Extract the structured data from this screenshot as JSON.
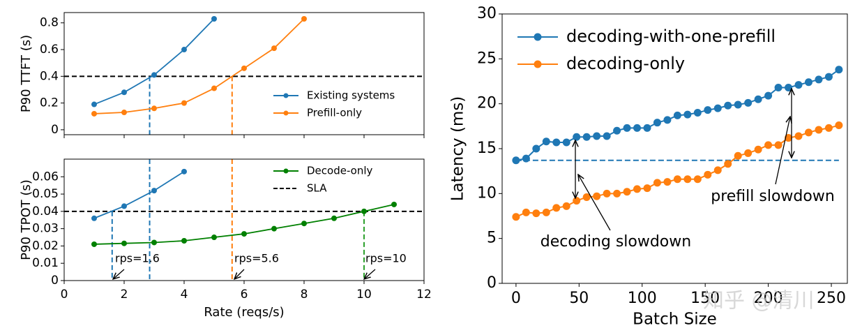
{
  "chart_data": [
    {
      "type": "line",
      "ylabel": "P90 TTFT (s)",
      "xlim": [
        0,
        12
      ],
      "ylim": [
        -0.037,
        0.877
      ],
      "yticks": [
        0,
        0.2,
        0.4,
        0.6,
        0.8
      ],
      "sla": 0.4,
      "legend": "center right",
      "vlines": [
        {
          "x": 2.85,
          "y": 0.4,
          "color": "#1f77b4"
        },
        {
          "x": 5.6,
          "y": 0.4,
          "color": "#ff7f0e"
        }
      ],
      "series": [
        {
          "name": "Existing systems",
          "color": "#1f77b4",
          "x": [
            1,
            2,
            3,
            4,
            5
          ],
          "values": [
            0.19,
            0.28,
            0.41,
            0.6,
            0.83
          ]
        },
        {
          "name": "Prefill-only",
          "color": "#ff7f0e",
          "x": [
            1,
            2,
            3,
            4,
            5,
            6,
            7,
            8
          ],
          "values": [
            0.12,
            0.13,
            0.16,
            0.2,
            0.31,
            0.46,
            0.61,
            0.83
          ]
        }
      ]
    },
    {
      "type": "line",
      "ylabel": "P90 TPOT (s)",
      "xlabel": "Rate (reqs/s)",
      "xlim": [
        0,
        12
      ],
      "xticks": [
        0,
        2,
        4,
        6,
        8,
        10,
        12
      ],
      "ylim": [
        0,
        0.0702
      ],
      "yticks": [
        0,
        0.01,
        0.02,
        0.03,
        0.04,
        0.05,
        0.06
      ],
      "sla": 0.04,
      "sla_label": "SLA",
      "legend": "upper right",
      "vlines": [
        {
          "x": 1.6,
          "y": 0.04,
          "color": "#1f77b4"
        },
        {
          "x": 2.85,
          "y": 0.0702,
          "color": "#1f77b4"
        },
        {
          "x": 5.6,
          "y": 0.0702,
          "color": "#ff7f0e"
        },
        {
          "x": 10,
          "y": 0.04,
          "color": "#2ca02c"
        }
      ],
      "annotations": [
        "rps=1.6",
        "rps=5.6",
        "rps=10"
      ],
      "series": [
        {
          "color": "#1f77b4",
          "x": [
            1,
            2,
            3,
            4
          ],
          "values": [
            0.036,
            0.043,
            0.052,
            0.063
          ]
        },
        {
          "name": "Decode-only",
          "color": "#008000",
          "x": [
            1,
            2,
            3,
            4,
            5,
            6,
            7,
            8,
            9,
            10,
            11
          ],
          "values": [
            0.021,
            0.0215,
            0.022,
            0.023,
            0.025,
            0.027,
            0.03,
            0.033,
            0.036,
            0.04,
            0.044
          ]
        }
      ]
    },
    {
      "type": "line",
      "ylabel": "Latency (ms)",
      "xlabel": "Batch Size",
      "xlim": [
        -11,
        262.7
      ],
      "xticks": [
        0,
        50,
        100,
        150,
        200,
        250
      ],
      "ylim": [
        0,
        30
      ],
      "yticks": [
        0,
        5,
        10,
        15,
        20,
        25,
        30
      ],
      "hline": 13.7,
      "legend": "upper left",
      "annotations": [
        "decoding slowdown",
        "prefill slowdown"
      ],
      "watermark": "知乎 @清川",
      "series": [
        {
          "name": "decoding-with-one-prefill",
          "color": "#1f77b4",
          "x": [
            0,
            8,
            16,
            24,
            32,
            40,
            48,
            56,
            64,
            72,
            80,
            88,
            96,
            104,
            112,
            120,
            128,
            136,
            144,
            152,
            160,
            168,
            176,
            184,
            192,
            200,
            208,
            216,
            224,
            232,
            240,
            248,
            256
          ],
          "values": [
            13.7,
            13.9,
            15.0,
            15.8,
            15.7,
            15.7,
            16.3,
            16.3,
            16.4,
            16.4,
            17.0,
            17.3,
            17.3,
            17.3,
            17.9,
            18.2,
            18.7,
            18.8,
            19.0,
            19.3,
            19.5,
            19.8,
            19.9,
            20.1,
            20.5,
            20.9,
            21.8,
            21.8,
            22.1,
            22.4,
            22.7,
            23.0,
            23.8
          ]
        },
        {
          "name": "decoding-only",
          "color": "#ff7f0e",
          "x": [
            0,
            8,
            16,
            24,
            32,
            40,
            48,
            56,
            64,
            72,
            80,
            88,
            96,
            104,
            112,
            120,
            128,
            136,
            144,
            152,
            160,
            168,
            176,
            184,
            192,
            200,
            208,
            216,
            224,
            232,
            240,
            248,
            256
          ],
          "values": [
            7.4,
            7.9,
            7.8,
            7.9,
            8.4,
            8.6,
            9.2,
            9.6,
            9.7,
            10.0,
            10.0,
            10.2,
            10.5,
            10.6,
            11.2,
            11.3,
            11.6,
            11.6,
            11.6,
            12.1,
            12.6,
            13.3,
            14.2,
            14.5,
            14.9,
            15.4,
            15.4,
            16.2,
            16.4,
            16.8,
            17.1,
            17.3,
            17.6
          ]
        }
      ]
    }
  ]
}
